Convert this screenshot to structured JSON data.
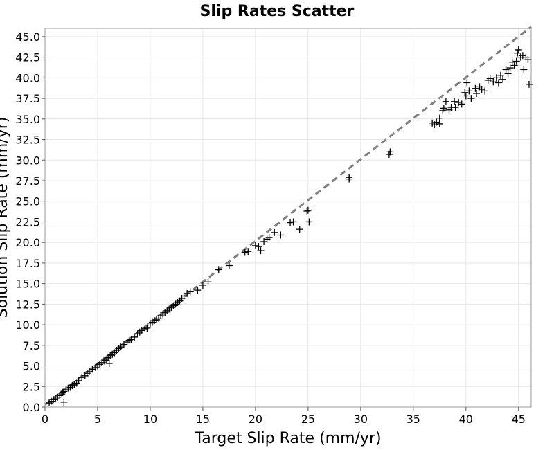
{
  "chart_data": {
    "type": "scatter",
    "title": "Slip Rates Scatter",
    "xlabel": "Target Slip Rate (mm/yr)",
    "ylabel": "Solution Slip Rate (mm/yr)",
    "xlim": [
      0,
      46.2
    ],
    "ylim": [
      0,
      46
    ],
    "xticks": [
      0,
      5,
      10,
      15,
      20,
      25,
      30,
      35,
      40,
      45
    ],
    "xtick_labels": [
      "0",
      "5",
      "10",
      "15",
      "20",
      "25",
      "30",
      "35",
      "40",
      "45"
    ],
    "yticks": [
      0,
      2.5,
      5,
      7.5,
      10,
      12.5,
      15,
      17.5,
      20,
      22.5,
      25,
      27.5,
      30,
      32.5,
      35,
      37.5,
      40,
      42.5,
      45
    ],
    "ytick_labels": [
      "0.0",
      "2.5",
      "5.0",
      "7.5",
      "10.0",
      "12.5",
      "15.0",
      "17.5",
      "20.0",
      "22.5",
      "25.0",
      "27.5",
      "30.0",
      "32.5",
      "35.0",
      "37.5",
      "40.0",
      "42.5",
      "45.0"
    ],
    "grid": true,
    "marker": "+",
    "marker_color": "#000000",
    "reference_line": {
      "style": "dashed",
      "color": "#808080",
      "points": [
        [
          0,
          0.3
        ],
        [
          46.2,
          46.2
        ]
      ]
    },
    "series": [
      {
        "points": [
          [
            0.4,
            0.5
          ],
          [
            0.6,
            0.7
          ],
          [
            0.8,
            0.9
          ],
          [
            1.0,
            1.0
          ],
          [
            1.2,
            1.2
          ],
          [
            1.4,
            1.4
          ],
          [
            1.6,
            1.6
          ],
          [
            1.7,
            1.8
          ],
          [
            1.8,
            1.9
          ],
          [
            2.0,
            2.1
          ],
          [
            2.2,
            2.3
          ],
          [
            2.4,
            2.4
          ],
          [
            2.6,
            2.6
          ],
          [
            2.8,
            2.7
          ],
          [
            3.0,
            2.9
          ],
          [
            3.2,
            3.2
          ],
          [
            3.5,
            3.6
          ],
          [
            3.8,
            3.8
          ],
          [
            4.0,
            4.1
          ],
          [
            4.2,
            4.3
          ],
          [
            4.5,
            4.6
          ],
          [
            4.8,
            4.8
          ],
          [
            5.0,
            5.0
          ],
          [
            5.2,
            5.2
          ],
          [
            5.4,
            5.4
          ],
          [
            5.6,
            5.6
          ],
          [
            5.8,
            5.7
          ],
          [
            6.0,
            6.0
          ],
          [
            6.2,
            6.3
          ],
          [
            6.4,
            6.4
          ],
          [
            6.6,
            6.6
          ],
          [
            6.8,
            6.9
          ],
          [
            7.0,
            7.1
          ],
          [
            7.2,
            7.3
          ],
          [
            7.5,
            7.6
          ],
          [
            7.8,
            7.9
          ],
          [
            8.0,
            8.1
          ],
          [
            8.2,
            8.2
          ],
          [
            8.5,
            8.5
          ],
          [
            8.8,
            8.9
          ],
          [
            9.0,
            9.1
          ],
          [
            9.2,
            9.3
          ],
          [
            9.5,
            9.5
          ],
          [
            9.7,
            9.6
          ],
          [
            10.0,
            10.2
          ],
          [
            10.2,
            10.3
          ],
          [
            10.4,
            10.5
          ],
          [
            10.6,
            10.6
          ],
          [
            10.8,
            10.8
          ],
          [
            11.0,
            11.1
          ],
          [
            11.2,
            11.3
          ],
          [
            11.4,
            11.5
          ],
          [
            11.6,
            11.7
          ],
          [
            11.8,
            11.9
          ],
          [
            12.0,
            12.1
          ],
          [
            12.2,
            12.3
          ],
          [
            12.4,
            12.5
          ],
          [
            12.6,
            12.7
          ],
          [
            12.8,
            12.9
          ],
          [
            13.0,
            13.2
          ],
          [
            13.2,
            13.5
          ],
          [
            13.5,
            13.8
          ],
          [
            13.8,
            14.0
          ],
          [
            14.5,
            14.2
          ],
          [
            15.0,
            14.8
          ],
          [
            15.5,
            15.2
          ],
          [
            16.5,
            16.7
          ],
          [
            17.5,
            17.2
          ],
          [
            19.0,
            18.8
          ],
          [
            19.3,
            18.9
          ],
          [
            20.0,
            19.6
          ],
          [
            20.3,
            19.5
          ],
          [
            20.5,
            19.0
          ],
          [
            20.8,
            20.1
          ],
          [
            21.1,
            20.4
          ],
          [
            21.3,
            20.6
          ],
          [
            21.8,
            21.2
          ],
          [
            22.4,
            20.9
          ],
          [
            23.3,
            22.4
          ],
          [
            23.6,
            22.5
          ],
          [
            24.2,
            21.6
          ],
          [
            24.9,
            23.8
          ],
          [
            25.0,
            23.9
          ],
          [
            25.1,
            22.5
          ],
          [
            28.9,
            27.7
          ],
          [
            28.9,
            27.9
          ],
          [
            32.7,
            30.7
          ],
          [
            32.8,
            31.0
          ],
          [
            1.8,
            0.6
          ],
          [
            6.1,
            5.3
          ],
          [
            36.8,
            34.5
          ],
          [
            37.0,
            34.3
          ],
          [
            37.2,
            34.6
          ],
          [
            37.5,
            34.4
          ],
          [
            37.5,
            35.1
          ],
          [
            37.8,
            36.0
          ],
          [
            37.9,
            36.3
          ],
          [
            38.1,
            37.1
          ],
          [
            38.4,
            36.1
          ],
          [
            38.6,
            36.4
          ],
          [
            38.9,
            37.1
          ],
          [
            39.0,
            36.4
          ],
          [
            39.3,
            37.0
          ],
          [
            39.6,
            36.8
          ],
          [
            39.9,
            38.2
          ],
          [
            40.0,
            37.8
          ],
          [
            40.1,
            39.4
          ],
          [
            40.3,
            38.4
          ],
          [
            40.5,
            37.5
          ],
          [
            40.9,
            38.7
          ],
          [
            41.0,
            38.1
          ],
          [
            41.3,
            38.9
          ],
          [
            41.5,
            38.6
          ],
          [
            41.8,
            38.4
          ],
          [
            42.1,
            39.7
          ],
          [
            42.3,
            39.9
          ],
          [
            42.6,
            39.5
          ],
          [
            42.9,
            40.0
          ],
          [
            43.1,
            39.4
          ],
          [
            43.3,
            40.3
          ],
          [
            43.5,
            39.8
          ],
          [
            43.8,
            41.0
          ],
          [
            44.0,
            40.5
          ],
          [
            44.2,
            41.2
          ],
          [
            44.4,
            41.9
          ],
          [
            44.6,
            41.5
          ],
          [
            44.8,
            42.0
          ],
          [
            44.9,
            43.0
          ],
          [
            45.0,
            43.4
          ],
          [
            45.2,
            42.5
          ],
          [
            45.4,
            42.7
          ],
          [
            45.5,
            41.0
          ],
          [
            45.7,
            42.5
          ],
          [
            45.9,
            42.2
          ],
          [
            46.0,
            39.2
          ]
        ]
      }
    ]
  }
}
